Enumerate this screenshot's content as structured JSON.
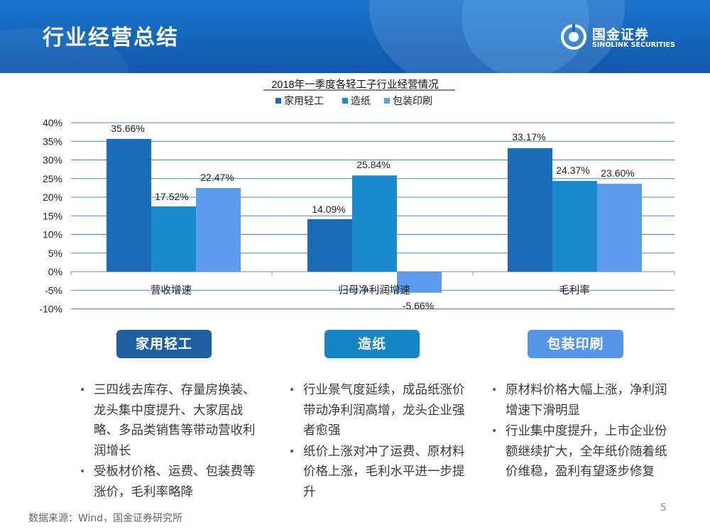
{
  "header": {
    "title": "行业经营总结",
    "logo_cn": "国金证券",
    "logo_en": "SINOLINK SECURITIES"
  },
  "colors": {
    "series1": "#1a6cb8",
    "series2": "#1b8ad0",
    "series3": "#5b9cee",
    "header": "#1565c0"
  },
  "chart_data": {
    "type": "bar",
    "title": "2018年一季度各轻工子行业经营情况",
    "categories": [
      "营收增速",
      "归母净利润增速",
      "毛利率"
    ],
    "series": [
      {
        "name": "家用轻工",
        "values": [
          35.66,
          14.09,
          33.17
        ],
        "labels": [
          "35.66%",
          "14.09%",
          "33.17%"
        ]
      },
      {
        "name": "造纸",
        "values": [
          17.52,
          25.84,
          24.37
        ],
        "labels": [
          "17.52%",
          "25.84%",
          "24.37%"
        ]
      },
      {
        "name": "包装印刷",
        "values": [
          22.47,
          -5.66,
          23.6
        ],
        "labels": [
          "22.47%",
          "-5.66%",
          "23.60%"
        ]
      }
    ],
    "yticks": [
      "40%",
      "35%",
      "30%",
      "25%",
      "20%",
      "15%",
      "10%",
      "5%",
      "0%",
      "-5%",
      "-10%"
    ],
    "ylim": [
      -10,
      40
    ],
    "legend": "top-center",
    "grid": true
  },
  "sections": [
    {
      "label": "家用轻工",
      "bullets": [
        "三四线去库存、存量房换装、龙头集中度提升、大家居战略、多品类销售等带动营收利润增长",
        "受板材价格、运费、包装费等涨价，毛利率略降"
      ]
    },
    {
      "label": "造纸",
      "bullets": [
        "行业景气度延续，成品纸涨价带动净利润高增，龙头企业强者愈强",
        "纸价上涨对冲了运费、原材料价格上涨，毛利水平进一步提升"
      ]
    },
    {
      "label": "包装印刷",
      "bullets": [
        "原材料价格大幅上涨，净利润增速下滑明显",
        "行业集中度提升，上市企业份额继续扩大，全年纸价随着纸价维稳，盈利有望逐步修复"
      ]
    }
  ],
  "bullet_symbol": "•",
  "footer": {
    "source": "数据来源：Wind，国金证券研究所",
    "page": "5"
  }
}
